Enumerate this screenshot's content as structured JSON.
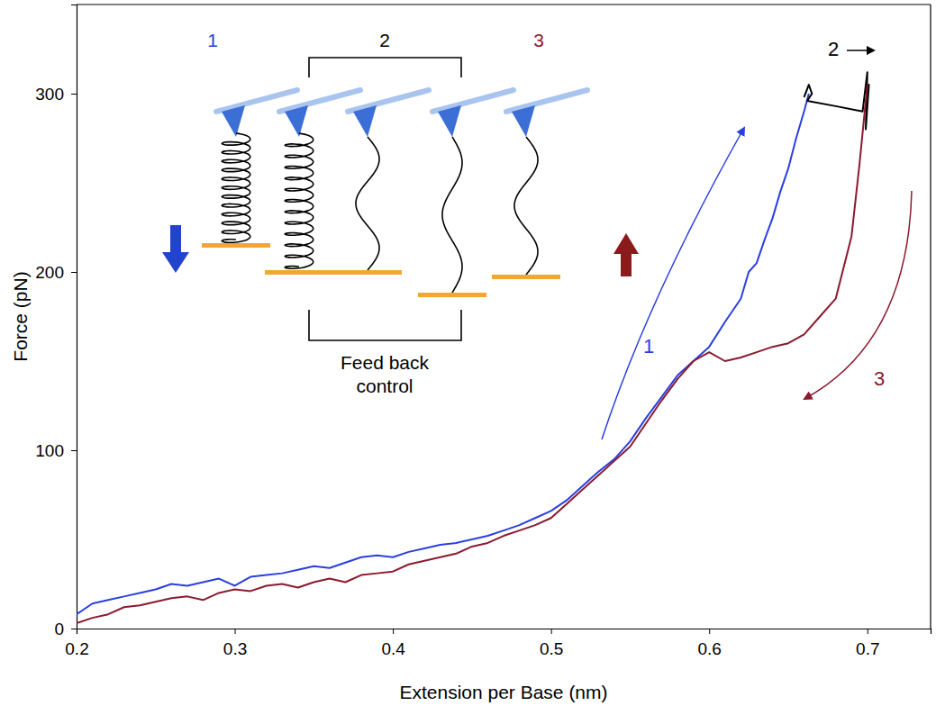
{
  "chart_data": {
    "type": "line",
    "x_label": "Extension per Base (nm)",
    "y_label": "Force (pN)",
    "xlim": [
      0.2,
      0.74
    ],
    "ylim": [
      0,
      350
    ],
    "xticks": [
      0.2,
      0.3,
      0.4,
      0.5,
      0.6,
      0.7
    ],
    "yticks": [
      0,
      100,
      200,
      300
    ],
    "grid": false,
    "series": [
      {
        "name": "1",
        "color": "#2a3fe0",
        "x": [
          0.2,
          0.21,
          0.22,
          0.23,
          0.24,
          0.25,
          0.26,
          0.27,
          0.28,
          0.29,
          0.3,
          0.31,
          0.32,
          0.33,
          0.34,
          0.35,
          0.36,
          0.37,
          0.38,
          0.39,
          0.4,
          0.41,
          0.42,
          0.43,
          0.44,
          0.45,
          0.46,
          0.47,
          0.48,
          0.49,
          0.5,
          0.51,
          0.52,
          0.53,
          0.54,
          0.55,
          0.56,
          0.57,
          0.58,
          0.59,
          0.6,
          0.61,
          0.62,
          0.625,
          0.63,
          0.635,
          0.64,
          0.645,
          0.65,
          0.655,
          0.66,
          0.663
        ],
        "values": [
          8,
          14,
          16,
          18,
          20,
          22,
          25,
          24,
          26,
          28,
          24,
          29,
          30,
          31,
          33,
          35,
          34,
          37,
          40,
          41,
          40,
          43,
          45,
          47,
          48,
          50,
          52,
          55,
          58,
          62,
          66,
          72,
          80,
          88,
          95,
          105,
          118,
          130,
          142,
          150,
          158,
          172,
          185,
          200,
          205,
          218,
          230,
          245,
          258,
          275,
          290,
          300
        ]
      },
      {
        "name": "2",
        "color": "#000000",
        "x": [
          0.66,
          0.663,
          0.665,
          0.662,
          0.68,
          0.697,
          0.7,
          0.699,
          0.701,
          0.7
        ],
        "values": [
          298,
          305,
          300,
          296,
          293,
          290,
          312,
          280,
          305,
          295
        ]
      },
      {
        "name": "3",
        "color": "#8b1a2e",
        "x": [
          0.2,
          0.21,
          0.22,
          0.23,
          0.24,
          0.25,
          0.26,
          0.27,
          0.28,
          0.29,
          0.3,
          0.31,
          0.32,
          0.33,
          0.34,
          0.35,
          0.36,
          0.37,
          0.38,
          0.39,
          0.4,
          0.41,
          0.42,
          0.43,
          0.44,
          0.45,
          0.46,
          0.47,
          0.48,
          0.49,
          0.5,
          0.51,
          0.52,
          0.53,
          0.54,
          0.55,
          0.56,
          0.57,
          0.58,
          0.59,
          0.6,
          0.61,
          0.62,
          0.63,
          0.64,
          0.65,
          0.66,
          0.67,
          0.68,
          0.69,
          0.695,
          0.7
        ],
        "values": [
          3,
          6,
          8,
          12,
          13,
          15,
          17,
          18,
          16,
          20,
          22,
          21,
          24,
          25,
          23,
          26,
          28,
          26,
          30,
          31,
          32,
          36,
          38,
          40,
          42,
          46,
          48,
          52,
          55,
          58,
          62,
          70,
          78,
          86,
          94,
          102,
          115,
          128,
          140,
          150,
          155,
          150,
          152,
          155,
          158,
          160,
          165,
          175,
          185,
          220,
          260,
          305
        ]
      }
    ],
    "inset": {
      "labels": [
        "1",
        "2",
        "3"
      ],
      "caption": "Feed back control"
    }
  }
}
